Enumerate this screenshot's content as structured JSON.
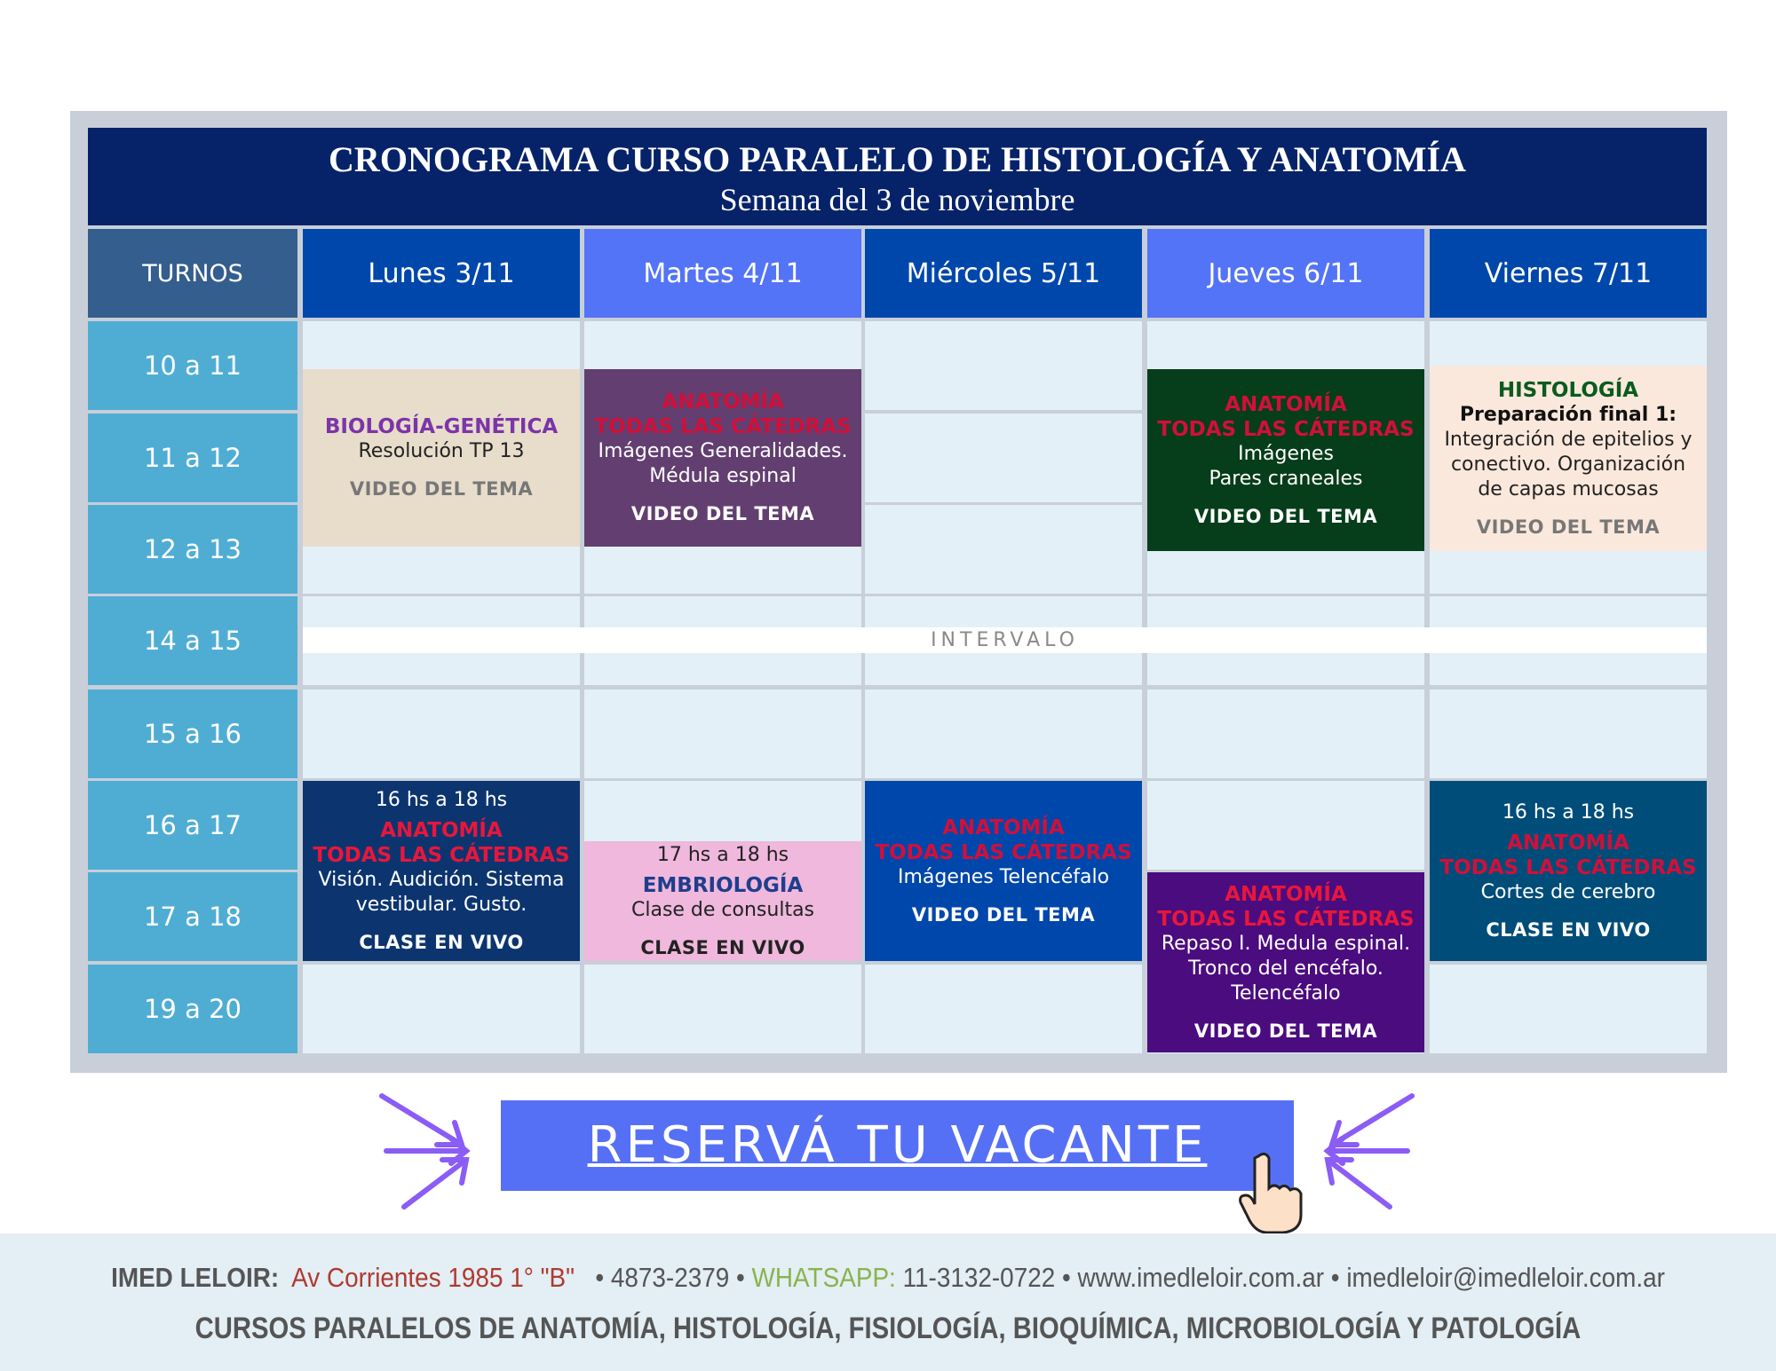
{
  "header": {
    "title": "CRONOGRAMA CURSO PARALELO DE HISTOLOGÍA Y ANATOMÍA",
    "subtitle": "Semana del 3 de noviembre"
  },
  "table": {
    "turnos_label": "TURNOS",
    "days": [
      "Lunes 3/11",
      "Martes 4/11",
      "Miércoles 5/11",
      "Jueves 6/11",
      "Viernes 7/11"
    ],
    "slots": [
      "10 a 11",
      "11 a 12",
      "12 a 13",
      "14 a 15",
      "15 a 16",
      "16 a 17",
      "17 a 18",
      "19 a 20"
    ],
    "intervalo": "INTERVALO"
  },
  "events": [
    {
      "title": [
        "BIOLOGÍA-GENÉTICA"
      ],
      "lines": [
        "Resolución TP 13"
      ],
      "link": "VIDEO DEL TEMA"
    },
    {
      "title": [
        "ANATOMÍA",
        "TODAS LAS CÁTEDRAS"
      ],
      "lines": [
        "Imágenes Generalidades.",
        "Médula espinal"
      ],
      "link": "VIDEO DEL TEMA"
    },
    {
      "title": [
        "ANATOMÍA",
        "TODAS LAS CÁTEDRAS"
      ],
      "lines": [
        "Imágenes",
        "Pares craneales"
      ],
      "link": "VIDEO DEL TEMA"
    },
    {
      "title": [
        "HISTOLOGÍA"
      ],
      "subtitle": "Preparación final 1:",
      "lines": [
        "Integración de epitelios y",
        "conectivo. Organización",
        "de capas mucosas"
      ],
      "link": "VIDEO DEL TEMA"
    },
    {
      "time": "16 hs a 18 hs",
      "title": [
        "ANATOMÍA",
        "TODAS LAS CÁTEDRAS"
      ],
      "lines": [
        "Visión. Audición. Sistema",
        "vestibular. Gusto."
      ],
      "link": "CLASE EN VIVO"
    },
    {
      "time": "17 hs a 18 hs",
      "title": [
        "EMBRIOLOGÍA"
      ],
      "lines": [
        "Clase de consultas"
      ],
      "link": "CLASE EN VIVO"
    },
    {
      "title": [
        "ANATOMÍA",
        "TODAS LAS CÁTEDRAS"
      ],
      "lines": [
        "Imágenes Telencéfalo"
      ],
      "link": "VIDEO DEL TEMA"
    },
    {
      "title": [
        "ANATOMÍA",
        "TODAS LAS CÁTEDRAS"
      ],
      "lines": [
        "Repaso I. Medula espinal.",
        "Tronco del encéfalo.",
        "Telencéfalo"
      ],
      "link": "VIDEO DEL TEMA"
    },
    {
      "time": "16 hs a 18 hs",
      "title": [
        "ANATOMÍA",
        "TODAS LAS CÁTEDRAS"
      ],
      "lines": [
        "Cortes de cerebro"
      ],
      "link": "CLASE EN VIVO"
    }
  ],
  "button": "RESERVÁ TU VACANTE",
  "footer": {
    "line1": [
      "IMED LELOIR:",
      "Av Corrientes 1985 1° \"B\"",
      "• 4873-2379 •",
      "WHATSAPP:",
      "11-3132-0722 • www.imedleloir.com.ar • imedleloir@imedleloir.com.ar"
    ],
    "line2": "CURSOS PARALELOS DE ANATOMÍA, HISTOLOGÍA, FISIOLOGÍA, BIOQUÍMICA, MICROBIOLOGÍA Y PATOLOGÍA"
  }
}
